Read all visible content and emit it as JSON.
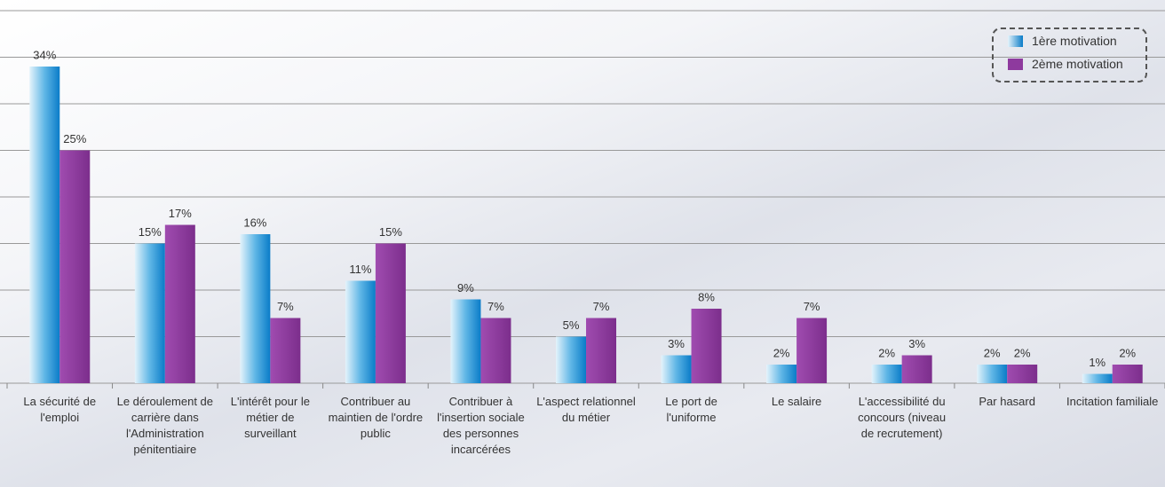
{
  "chart_data": {
    "type": "bar",
    "categories": [
      "La sécurité de l'emploi",
      "Le déroulement de carrière dans l'Administration pénitentiaire",
      "L'intérêt pour le métier de surveillant",
      "Contribuer au maintien de l'ordre public",
      "Contribuer à l'insertion sociale des personnes incarcérées",
      "L'aspect relationnel du métier",
      "Le port de l'uniforme",
      "Le salaire",
      "L'accessibilité du concours (niveau de recrutement)",
      "Par hasard",
      "Incitation familiale"
    ],
    "series": [
      {
        "name": "1ère motivation",
        "color": "#0a7cc8",
        "values": [
          34,
          15,
          16,
          11,
          9,
          5,
          3,
          2,
          2,
          2,
          1
        ],
        "value_labels": [
          "34%",
          "15%",
          "16%",
          "11%",
          "9%",
          "5%",
          "3%",
          "2%",
          "2%",
          "2%",
          "1%"
        ]
      },
      {
        "name": "2ème motivation",
        "color": "#8e3a9e",
        "values": [
          25,
          17,
          7,
          15,
          7,
          7,
          8,
          7,
          3,
          2,
          2
        ],
        "value_labels": [
          "25%",
          "17%",
          "7%",
          "15%",
          "7%",
          "7%",
          "8%",
          "7%",
          "3%",
          "2%",
          "2%"
        ]
      }
    ],
    "ylim": [
      0,
      40
    ],
    "yticks": [
      0,
      5,
      10,
      15,
      20,
      25,
      30,
      35,
      40
    ],
    "grid": true,
    "legend": "top-right"
  }
}
